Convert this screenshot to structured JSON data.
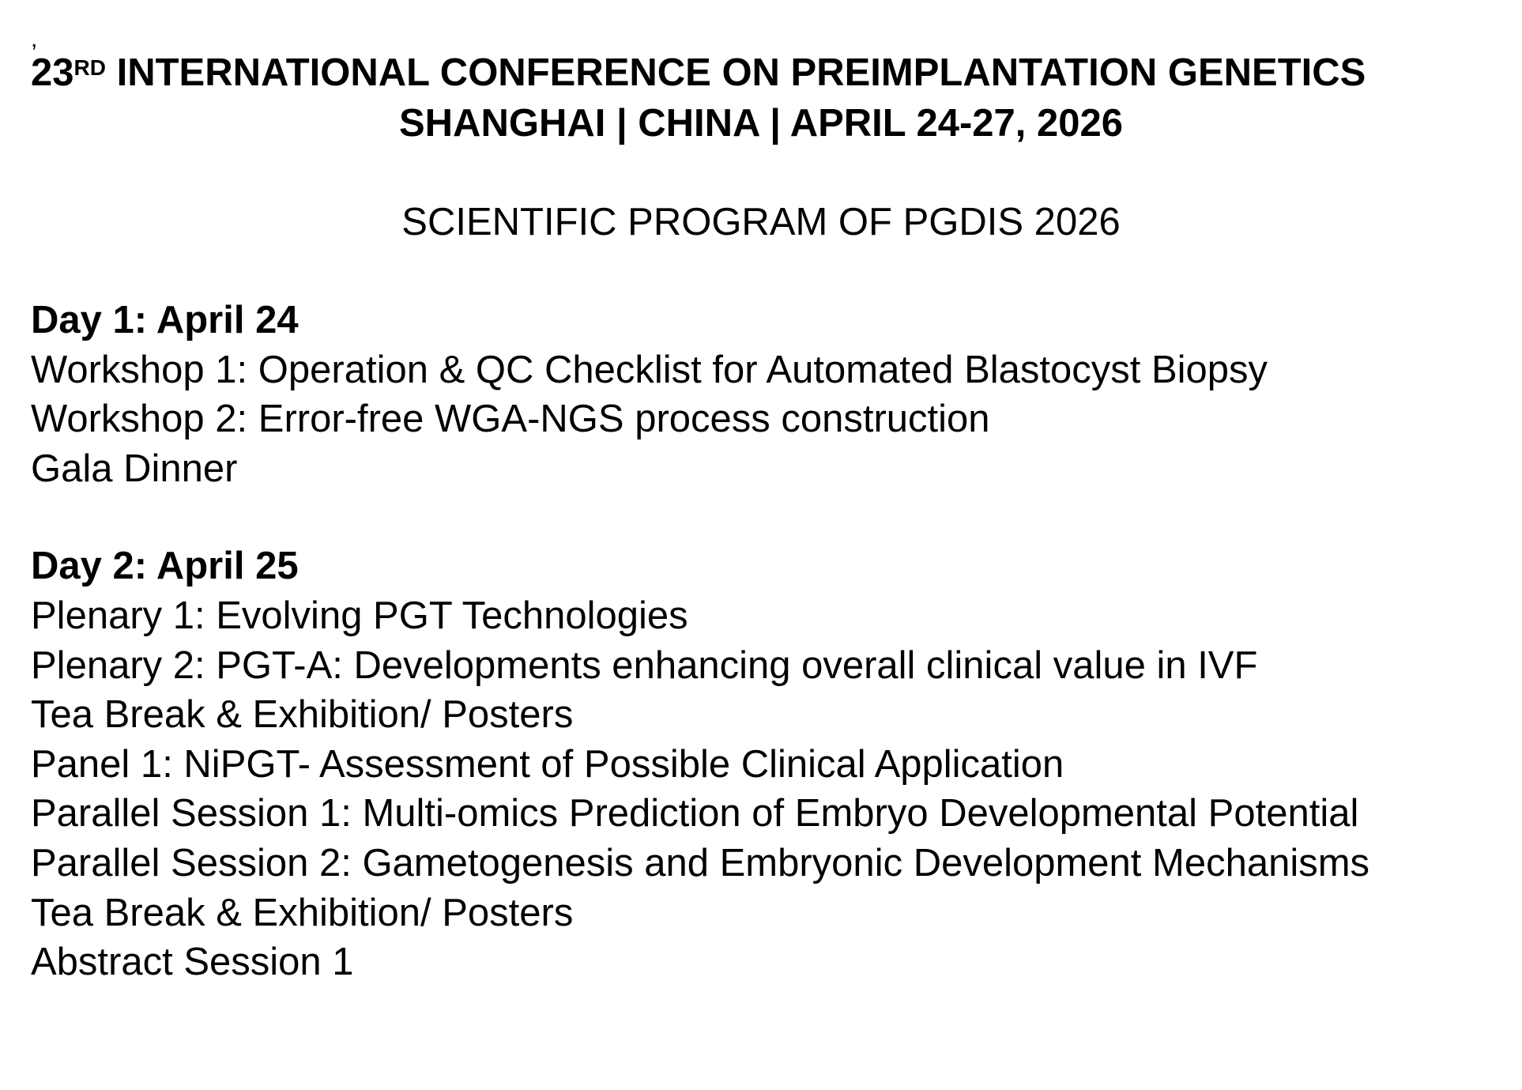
{
  "mark": ",",
  "header": {
    "title_number": "23",
    "title_suffix": "RD",
    "title_rest": " INTERNATIONAL CONFERENCE ON PREIMPLANTATION GENETICS",
    "subtitle": "SHANGHAI | CHINA | APRIL 24-27, 2026",
    "program_title": "SCIENTIFIC PROGRAM OF PGDIS 2026"
  },
  "days": [
    {
      "heading": "Day 1: April 24",
      "items": [
        "Workshop 1: Operation & QC Checklist for Automated Blastocyst Biopsy",
        "Workshop 2: Error-free WGA-NGS process construction",
        "Gala Dinner"
      ]
    },
    {
      "heading": "Day 2: April 25",
      "items": [
        "Plenary 1: Evolving PGT Technologies",
        "Plenary 2: PGT-A: Developments enhancing overall clinical value in IVF",
        "Tea Break & Exhibition/ Posters",
        "Panel 1: NiPGT- Assessment of Possible Clinical Application",
        "Parallel Session 1: Multi-omics Prediction of Embryo Developmental Potential",
        "Parallel Session 2: Gametogenesis and Embryonic Development Mechanisms",
        "Tea Break & Exhibition/ Posters",
        "Abstract Session 1"
      ]
    }
  ]
}
